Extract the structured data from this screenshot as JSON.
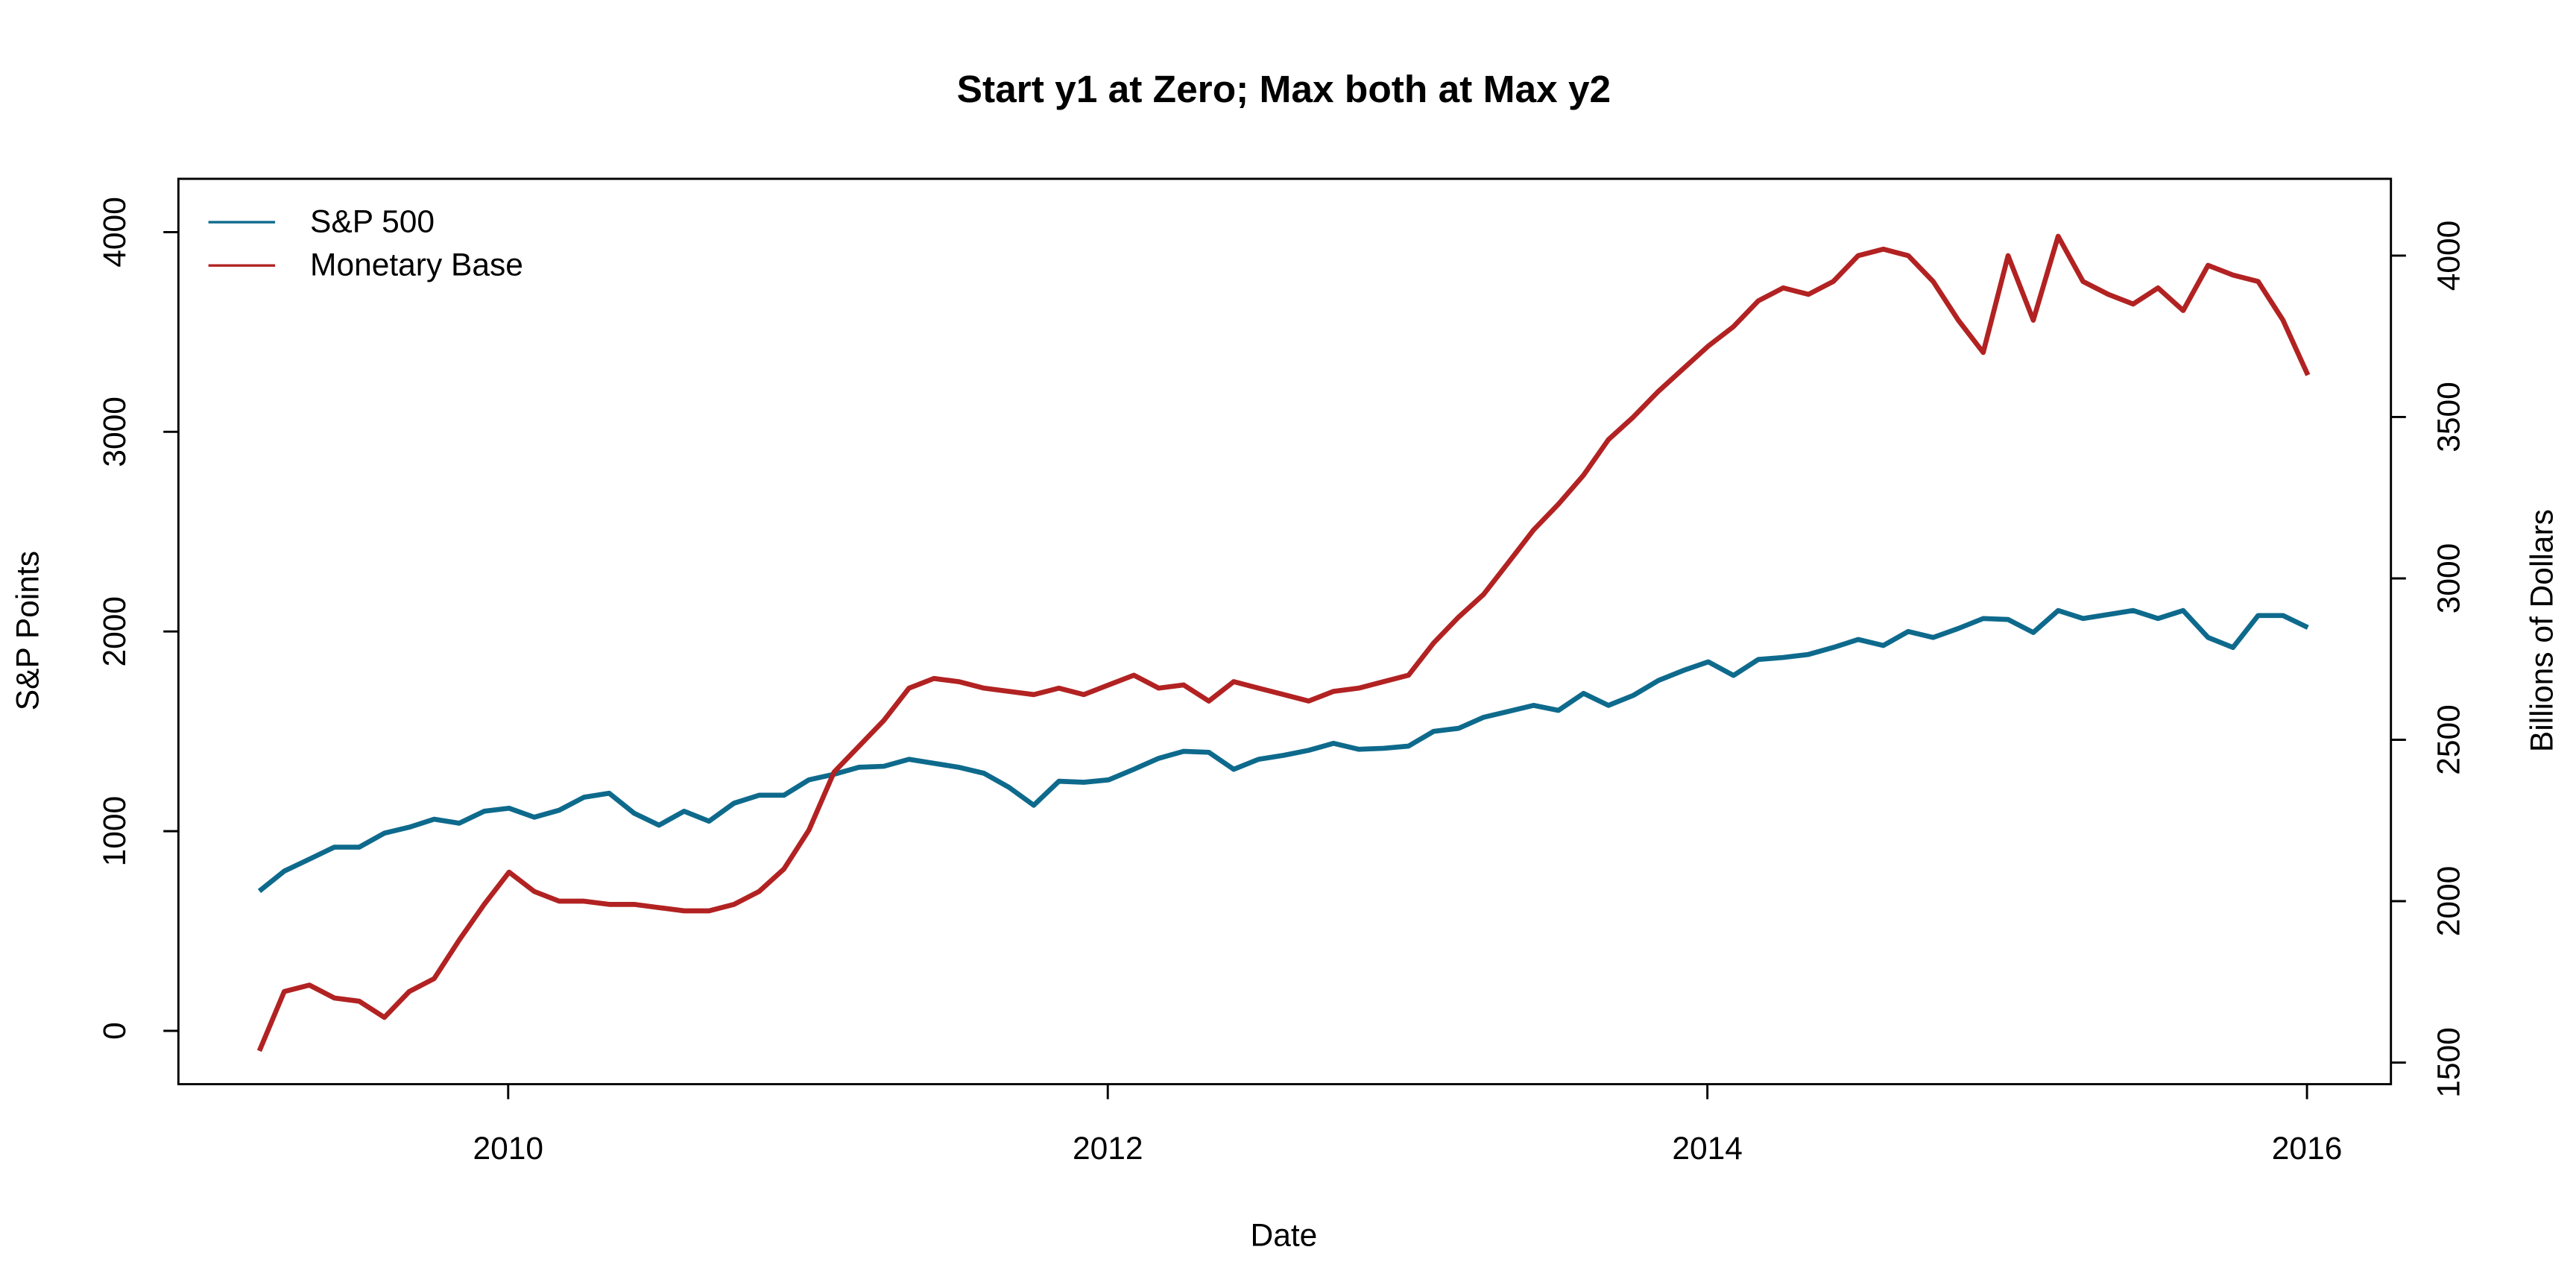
{
  "chart_data": {
    "type": "line",
    "title": "Start y1 at Zero; Max both at Max y2",
    "x_label": "Date",
    "y_label": "S&P Points",
    "y2_label": "Billions of Dollars",
    "xlim": [
      2008.9,
      2016.28
    ],
    "xticks": [
      2010,
      2012,
      2014,
      2016
    ],
    "ylim": [
      -267,
      4267
    ],
    "yticks": [
      0,
      1000,
      2000,
      3000,
      4000
    ],
    "y2lim": [
      1433,
      4238
    ],
    "y2ticks": [
      1500,
      2000,
      2500,
      3000,
      3500,
      4000
    ],
    "legend": "top-left",
    "x": [
      2009.17,
      2009.253,
      2009.337,
      2009.42,
      2009.503,
      2009.587,
      2009.67,
      2009.753,
      2009.837,
      2009.92,
      2010.003,
      2010.087,
      2010.17,
      2010.253,
      2010.337,
      2010.42,
      2010.503,
      2010.587,
      2010.67,
      2010.753,
      2010.837,
      2010.92,
      2011.003,
      2011.087,
      2011.17,
      2011.253,
      2011.337,
      2011.42,
      2011.503,
      2011.587,
      2011.67,
      2011.753,
      2011.837,
      2011.92,
      2012.003,
      2012.087,
      2012.17,
      2012.253,
      2012.337,
      2012.42,
      2012.503,
      2012.587,
      2012.67,
      2012.753,
      2012.837,
      2012.92,
      2013.003,
      2013.087,
      2013.17,
      2013.253,
      2013.337,
      2013.42,
      2013.503,
      2013.587,
      2013.67,
      2013.753,
      2013.837,
      2013.92,
      2014.003,
      2014.087,
      2014.17,
      2014.253,
      2014.337,
      2014.42,
      2014.503,
      2014.587,
      2014.67,
      2014.753,
      2014.837,
      2014.92,
      2015.003,
      2015.087,
      2015.17,
      2015.253,
      2015.337,
      2015.42,
      2015.503,
      2015.587,
      2015.67,
      2015.753,
      2015.837,
      2015.92,
      2016.003
    ],
    "series": [
      {
        "name": "S&P 500",
        "color": "#0e6a8c",
        "values": [
          700,
          800,
          860,
          920,
          920,
          990,
          1020,
          1060,
          1040,
          1100,
          1115,
          1070,
          1105,
          1170,
          1190,
          1090,
          1030,
          1100,
          1050,
          1140,
          1180,
          1180,
          1257,
          1285,
          1320,
          1325,
          1360,
          1340,
          1320,
          1290,
          1220,
          1130,
          1250,
          1245,
          1257,
          1310,
          1365,
          1400,
          1395,
          1310,
          1360,
          1380,
          1405,
          1440,
          1410,
          1415,
          1426,
          1500,
          1515,
          1570,
          1600,
          1630,
          1605,
          1690,
          1630,
          1680,
          1755,
          1805,
          1848,
          1780,
          1860,
          1870,
          1885,
          1920,
          1960,
          1930,
          2000,
          1970,
          2015,
          2065,
          2060,
          1995,
          2105,
          2065,
          2085,
          2105,
          2065,
          2105,
          1970,
          1920,
          2080,
          2080,
          2020
        ]
      },
      {
        "name": "Monetary Base",
        "color": "#b22222",
        "axis": "y2",
        "values": [
          1536,
          1720,
          1740,
          1700,
          1690,
          1640,
          1720,
          1760,
          1880,
          1990,
          2090,
          2030,
          2000,
          2000,
          1990,
          1990,
          1980,
          1970,
          1970,
          1990,
          2030,
          2100,
          2220,
          2400,
          2480,
          2560,
          2660,
          2690,
          2680,
          2660,
          2650,
          2640,
          2660,
          2640,
          2670,
          2700,
          2660,
          2670,
          2620,
          2680,
          2660,
          2640,
          2620,
          2650,
          2660,
          2680,
          2700,
          2800,
          2880,
          2950,
          3050,
          3150,
          3230,
          3320,
          3430,
          3500,
          3580,
          3650,
          3720,
          3780,
          3860,
          3900,
          3880,
          3920,
          4000,
          4020,
          4000,
          3920,
          3800,
          3700,
          4000,
          3800,
          4060,
          3920,
          3880,
          3850,
          3900,
          3830,
          3970,
          3940,
          3920,
          3800,
          3630
        ]
      }
    ]
  }
}
